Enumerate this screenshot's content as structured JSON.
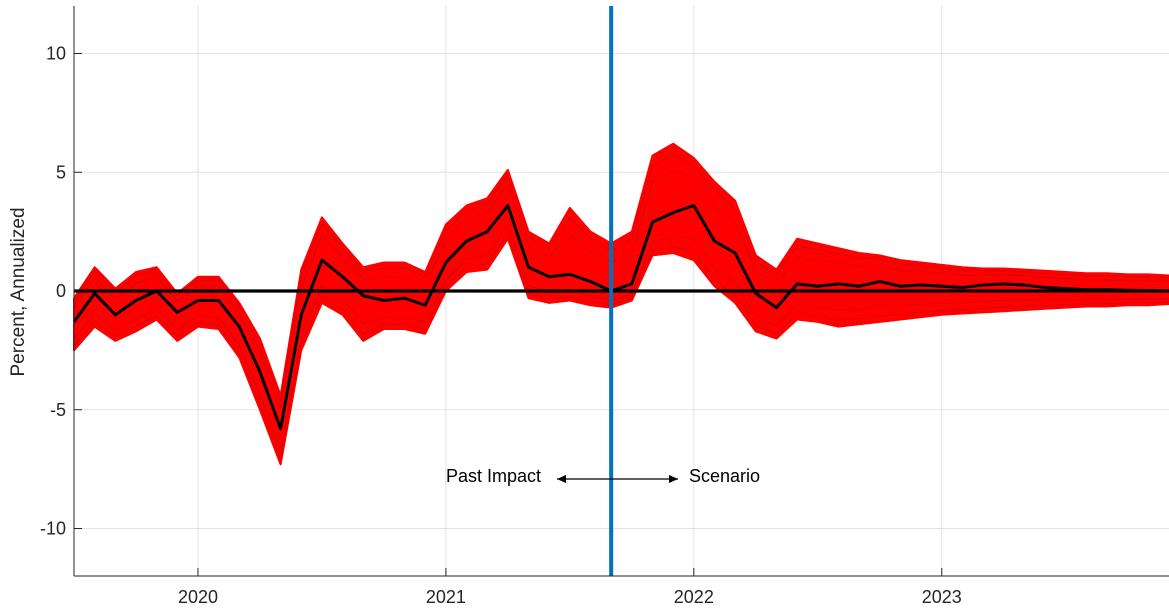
{
  "chart_data": {
    "type": "line",
    "ylabel": "Percent, Annualized",
    "xlim": [
      "2019-07",
      "2023-12"
    ],
    "ylim": [
      -12,
      12
    ],
    "yticks": [
      -10,
      -5,
      0,
      5,
      10
    ],
    "xticks": [
      "2020",
      "2021",
      "2022",
      "2023"
    ],
    "grid": true,
    "vertical_line": {
      "x": "2021-09",
      "color": "#0072BD"
    },
    "horizontal_line": {
      "y": 0,
      "color": "#000000"
    },
    "annotations": {
      "left": "Past Impact",
      "right": "Scenario"
    },
    "band_color": "#FF0000",
    "median_color": "#000000",
    "x": [
      "2019-07",
      "2019-08",
      "2019-09",
      "2019-10",
      "2019-11",
      "2019-12",
      "2020-01",
      "2020-02",
      "2020-03",
      "2020-04",
      "2020-05",
      "2020-06",
      "2020-07",
      "2020-08",
      "2020-09",
      "2020-10",
      "2020-11",
      "2020-12",
      "2021-01",
      "2021-02",
      "2021-03",
      "2021-04",
      "2021-05",
      "2021-06",
      "2021-07",
      "2021-08",
      "2021-09",
      "2021-10",
      "2021-11",
      "2021-12",
      "2022-01",
      "2022-02",
      "2022-03",
      "2022-04",
      "2022-05",
      "2022-06",
      "2022-07",
      "2022-08",
      "2022-09",
      "2022-10",
      "2022-11",
      "2022-12",
      "2023-01",
      "2023-02",
      "2023-03",
      "2023-04",
      "2023-05",
      "2023-06",
      "2023-07",
      "2023-08",
      "2023-09",
      "2023-10",
      "2023-11",
      "2023-12"
    ],
    "series": [
      {
        "values": [
          -1.3,
          -0.1,
          -1.0,
          -0.4,
          0.0,
          -0.9,
          -0.4,
          -0.4,
          -1.5,
          -3.4,
          -5.8,
          -1.0,
          1.3,
          0.6,
          -0.2,
          -0.4,
          -0.3,
          -0.6,
          1.2,
          2.1,
          2.5,
          3.6,
          1.0,
          0.6,
          0.7,
          0.4,
          0.0,
          0.3,
          2.9,
          3.3,
          3.6,
          2.1,
          1.6,
          -0.1,
          -0.7,
          0.3,
          0.2,
          0.3,
          0.2,
          0.4,
          0.2,
          0.25,
          0.2,
          0.15,
          0.25,
          0.3,
          0.25,
          0.15,
          0.1,
          0.05,
          0.05,
          0.03,
          0.02,
          0.0
        ]
      }
    ],
    "band_upper": [
      -0.3,
      1.0,
      0.1,
      0.8,
      1.0,
      -0.1,
      0.6,
      0.6,
      -0.5,
      -2.0,
      -4.4,
      0.9,
      3.1,
      2.0,
      1.0,
      1.2,
      1.2,
      0.8,
      2.8,
      3.6,
      3.9,
      5.1,
      2.5,
      2.0,
      3.5,
      2.5,
      2.0,
      2.5,
      5.7,
      6.2,
      5.6,
      4.6,
      3.8,
      1.5,
      0.9,
      2.2,
      2.0,
      1.8,
      1.6,
      1.5,
      1.3,
      1.2,
      1.1,
      1.0,
      0.95,
      0.95,
      0.9,
      0.85,
      0.8,
      0.75,
      0.75,
      0.7,
      0.7,
      0.65
    ],
    "band_lower": [
      -2.5,
      -1.5,
      -2.1,
      -1.7,
      -1.2,
      -2.1,
      -1.5,
      -1.6,
      -2.8,
      -5.0,
      -7.3,
      -2.5,
      -0.5,
      -1.0,
      -2.1,
      -1.6,
      -1.6,
      -1.8,
      0.0,
      0.8,
      0.9,
      2.2,
      -0.3,
      -0.5,
      -0.4,
      -0.6,
      -0.7,
      -0.4,
      1.5,
      1.6,
      1.3,
      0.2,
      -0.5,
      -1.7,
      -2.0,
      -1.2,
      -1.3,
      -1.5,
      -1.4,
      -1.3,
      -1.2,
      -1.1,
      -1.0,
      -0.95,
      -0.9,
      -0.85,
      -0.8,
      -0.75,
      -0.7,
      -0.65,
      -0.65,
      -0.6,
      -0.6,
      -0.55
    ]
  }
}
